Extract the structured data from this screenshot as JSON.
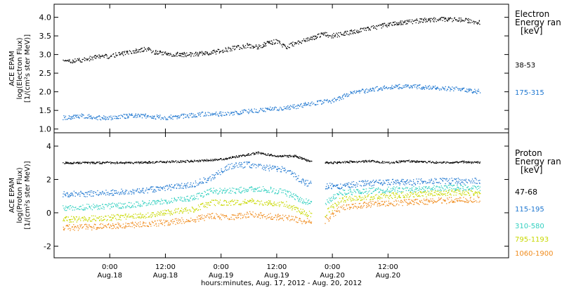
{
  "window": {
    "title": ""
  },
  "chart_data": [
    {
      "type": "scatter",
      "panel": "electron",
      "ylabel_lines": [
        "ACE EPAM",
        "log(Electron Flux)",
        "[1/(cm²s ster MeV)]"
      ],
      "ylim": [
        0.9,
        4.35
      ],
      "yticks": [
        "1.0",
        "1.5",
        "2.0",
        "2.5",
        "3.0",
        "3.5",
        "4.0"
      ],
      "legend_title": [
        "Electron",
        "Energy ran",
        "[keV]"
      ],
      "series": [
        {
          "name": "38-53",
          "color": "#000000",
          "x": [
            -10,
            -6,
            -2,
            0,
            4,
            8,
            10,
            14,
            18,
            22,
            26,
            30,
            32,
            34,
            36,
            38,
            40,
            44,
            46,
            48,
            50,
            54,
            56,
            60,
            64,
            68,
            72,
            76,
            80
          ],
          "y": [
            2.8,
            2.85,
            2.95,
            2.95,
            3.05,
            3.15,
            3.05,
            3.0,
            3.0,
            3.05,
            3.15,
            3.25,
            3.2,
            3.3,
            3.35,
            3.2,
            3.3,
            3.45,
            3.55,
            3.5,
            3.55,
            3.65,
            3.7,
            3.8,
            3.87,
            3.92,
            3.95,
            3.93,
            3.85
          ]
        },
        {
          "name": "175-315",
          "color": "#1f77d0",
          "x": [
            -10,
            -6,
            -2,
            0,
            4,
            8,
            12,
            16,
            20,
            24,
            28,
            32,
            36,
            40,
            44,
            48,
            52,
            56,
            60,
            64,
            68,
            72,
            76,
            80
          ],
          "y": [
            1.3,
            1.35,
            1.3,
            1.3,
            1.35,
            1.35,
            1.3,
            1.35,
            1.4,
            1.4,
            1.45,
            1.5,
            1.55,
            1.6,
            1.7,
            1.75,
            1.95,
            2.05,
            2.12,
            2.15,
            2.12,
            2.1,
            2.05,
            2.0
          ]
        }
      ]
    },
    {
      "type": "scatter",
      "panel": "proton",
      "ylabel_lines": [
        "ACE EPAM",
        "log(Proton Flux)",
        "[1/(cm²s ster MeV)]"
      ],
      "ylim": [
        -2.7,
        4.8
      ],
      "yticks": [
        "-2",
        "0",
        "2",
        "4"
      ],
      "legend_title": [
        "Proton",
        "Energy ran",
        "[keV]"
      ],
      "series": [
        {
          "name": "47-68",
          "color": "#000000",
          "x": [
            -10,
            -4,
            0,
            6,
            12,
            18,
            24,
            30,
            32,
            36,
            40,
            44,
            48,
            52,
            56,
            60,
            64,
            68,
            72,
            76,
            80
          ],
          "y": [
            3.0,
            3.0,
            3.0,
            3.0,
            3.05,
            3.1,
            3.2,
            3.5,
            3.6,
            3.4,
            3.4,
            3.0,
            3.0,
            3.05,
            3.1,
            3.0,
            3.1,
            3.05,
            3.0,
            3.05,
            3.0
          ]
        },
        {
          "name": "115-195",
          "color": "#1f77d0",
          "x": [
            -10,
            -4,
            0,
            6,
            12,
            18,
            22,
            26,
            30,
            34,
            38,
            42,
            46,
            50,
            54,
            58,
            62,
            66,
            70,
            74,
            80
          ],
          "y": [
            1.1,
            1.15,
            1.2,
            1.3,
            1.5,
            1.7,
            2.1,
            2.8,
            2.9,
            2.7,
            2.6,
            1.8,
            1.6,
            1.6,
            1.75,
            1.8,
            1.85,
            1.85,
            1.9,
            1.9,
            1.9
          ]
        },
        {
          "name": "310-580",
          "color": "#33d0c0",
          "x": [
            -10,
            -4,
            0,
            6,
            12,
            18,
            22,
            26,
            30,
            34,
            38,
            42,
            46,
            50,
            54,
            58,
            62,
            66,
            70,
            74,
            80
          ],
          "y": [
            0.3,
            0.35,
            0.4,
            0.5,
            0.7,
            0.9,
            1.3,
            1.3,
            1.4,
            1.4,
            1.2,
            0.7,
            0.5,
            1.2,
            1.3,
            1.35,
            1.4,
            1.4,
            1.45,
            1.5,
            1.5
          ]
        },
        {
          "name": "795-1193",
          "color": "#c8d800",
          "x": [
            -10,
            -4,
            0,
            6,
            12,
            18,
            22,
            26,
            30,
            34,
            38,
            42,
            46,
            50,
            54,
            58,
            62,
            66,
            70,
            74,
            80
          ],
          "y": [
            -0.4,
            -0.35,
            -0.3,
            -0.2,
            0.0,
            0.2,
            0.6,
            0.6,
            0.7,
            0.6,
            0.5,
            0.0,
            -0.2,
            0.8,
            0.9,
            1.0,
            1.05,
            1.1,
            1.15,
            1.2,
            1.2
          ]
        },
        {
          "name": "1060-1900",
          "color": "#f08c1e",
          "x": [
            -10,
            -4,
            0,
            6,
            12,
            18,
            22,
            26,
            30,
            34,
            38,
            42,
            46,
            50,
            54,
            58,
            62,
            66,
            70,
            74,
            80
          ],
          "y": [
            -0.9,
            -0.85,
            -0.8,
            -0.7,
            -0.6,
            -0.4,
            -0.2,
            -0.3,
            -0.1,
            -0.2,
            -0.3,
            -0.5,
            -0.6,
            0.3,
            0.45,
            0.55,
            0.6,
            0.65,
            0.7,
            0.75,
            0.8
          ]
        }
      ]
    }
  ],
  "xaxis": {
    "xlim": [
      -12,
      86
    ],
    "ticks": [
      {
        "x": 0,
        "top": "0:00",
        "bottom": "Aug.18"
      },
      {
        "x": 12,
        "top": "12:00",
        "bottom": "Aug.18"
      },
      {
        "x": 24,
        "top": "0:00",
        "bottom": "Aug.19"
      },
      {
        "x": 36,
        "top": "12:00",
        "bottom": "Aug.19"
      },
      {
        "x": 48,
        "top": "0:00",
        "bottom": "Aug.20"
      },
      {
        "x": 60,
        "top": "12:00",
        "bottom": "Aug.20"
      }
    ],
    "label": "hours:minutes, Aug. 17, 2012 - Aug. 20, 2012"
  }
}
